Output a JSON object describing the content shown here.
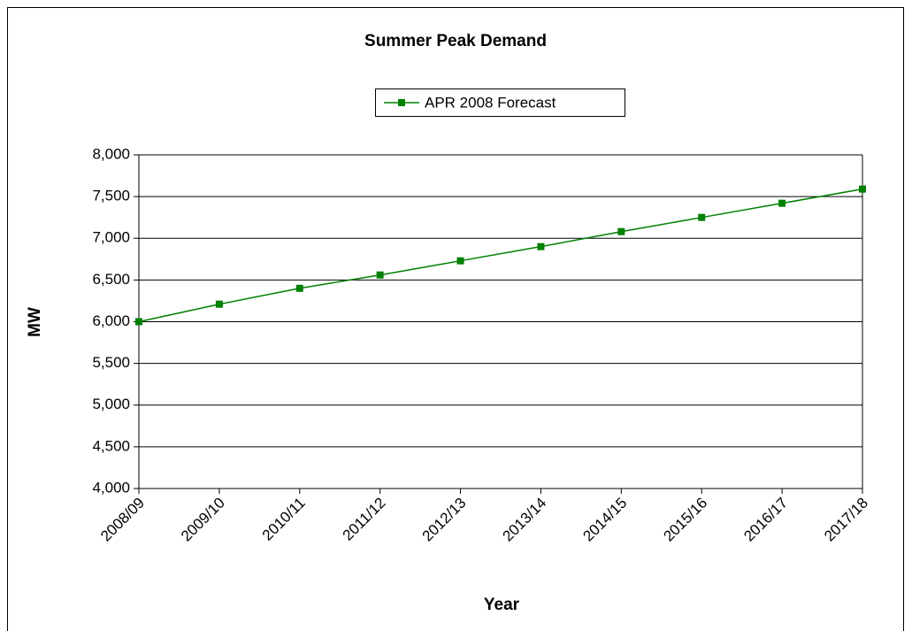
{
  "chart_data": {
    "type": "line",
    "title": "Summer Peak Demand",
    "x_label": "Year",
    "y_label": "MW",
    "categories": [
      "2008/09",
      "2009/10",
      "2010/11",
      "2011/12",
      "2012/13",
      "2013/14",
      "2014/15",
      "2015/16",
      "2016/17",
      "2017/18"
    ],
    "series": [
      {
        "name": "APR 2008 Forecast",
        "color": "#008000",
        "values": [
          6000,
          6210,
          6400,
          6560,
          6730,
          6900,
          7080,
          7250,
          7420,
          7590
        ]
      }
    ],
    "ylim": [
      4000,
      8000
    ],
    "yticks": [
      {
        "value": 4000,
        "label": "4,000"
      },
      {
        "value": 4500,
        "label": "4,500"
      },
      {
        "value": 5000,
        "label": "5,000"
      },
      {
        "value": 5500,
        "label": "5,500"
      },
      {
        "value": 6000,
        "label": "6,000"
      },
      {
        "value": 6500,
        "label": "6,500"
      },
      {
        "value": 7000,
        "label": "7,000"
      },
      {
        "value": 7500,
        "label": "7,500"
      },
      {
        "value": 8000,
        "label": "8,000"
      }
    ],
    "grid": true,
    "legend": "top"
  }
}
